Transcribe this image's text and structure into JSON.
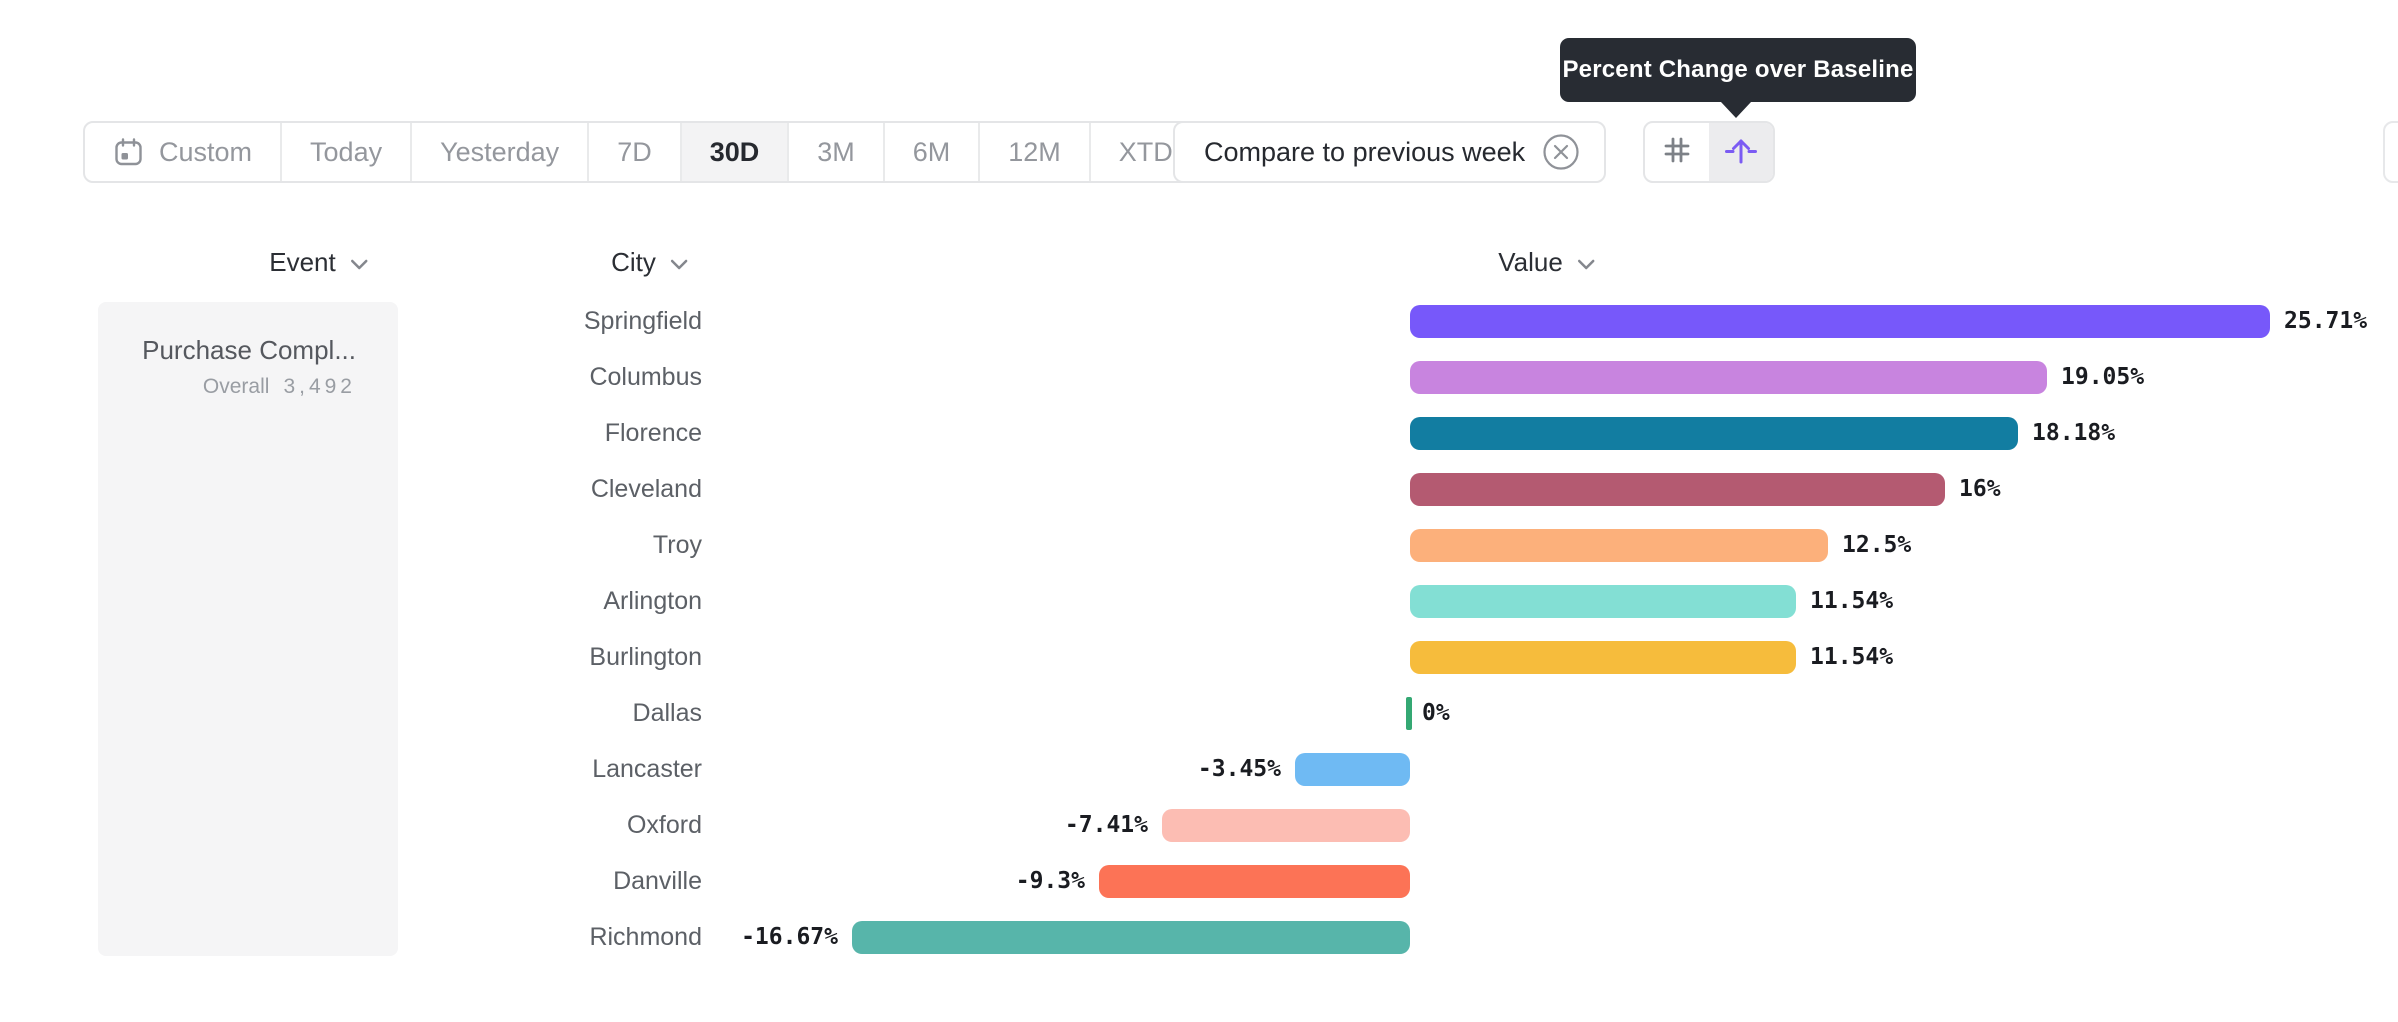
{
  "tooltip": {
    "text": "Percent Change over Baseline"
  },
  "toolbar": {
    "date_ranges": [
      {
        "label": "Custom",
        "icon": "calendar-icon",
        "selected": false
      },
      {
        "label": "Today",
        "selected": false
      },
      {
        "label": "Yesterday",
        "selected": false
      },
      {
        "label": "7D",
        "selected": false
      },
      {
        "label": "30D",
        "selected": true
      },
      {
        "label": "3M",
        "selected": false
      },
      {
        "label": "6M",
        "selected": false
      },
      {
        "label": "12M",
        "selected": false
      },
      {
        "label": "XTD",
        "selected": false,
        "chevron": true
      }
    ],
    "compare_chip": {
      "label": "Compare to previous week",
      "close_icon": "circle-x-icon"
    },
    "view_toggle": [
      {
        "icon": "grid-hash-icon",
        "selected": false
      },
      {
        "icon": "percent-baseline-icon",
        "selected": true
      }
    ]
  },
  "columns": [
    {
      "label": "Event"
    },
    {
      "label": "City"
    },
    {
      "label": "Value"
    }
  ],
  "event_card": {
    "title": "Purchase Compl...",
    "overall_label": "Overall",
    "overall_value": "3,492"
  },
  "chart_data": {
    "type": "bar",
    "orientation": "horizontal",
    "title": "Percent Change over Baseline",
    "unit": "%",
    "baseline": 0,
    "xlim": [
      -16.67,
      25.71
    ],
    "grid": false,
    "legend": false,
    "categories": [
      "Springfield",
      "Columbus",
      "Florence",
      "Cleveland",
      "Troy",
      "Arlington",
      "Burlington",
      "Dallas",
      "Lancaster",
      "Oxford",
      "Danville",
      "Richmond"
    ],
    "values": [
      25.71,
      19.05,
      18.18,
      16,
      12.5,
      11.54,
      11.54,
      0,
      -3.45,
      -7.41,
      -9.3,
      -16.67
    ],
    "labels": [
      "25.71%",
      "19.05%",
      "18.18%",
      "16%",
      "12.5%",
      "11.54%",
      "11.54%",
      "0%",
      "-3.45%",
      "-7.41%",
      "-9.3%",
      "-16.67%"
    ],
    "colors": [
      "#7758fa",
      "#c884df",
      "#127da1",
      "#b45a71",
      "#fcb07b",
      "#83dfd4",
      "#f6bc3c",
      "#34a873",
      "#6fbaf3",
      "#fcbdb3",
      "#fc7356",
      "#57b5aa"
    ]
  },
  "colors": {
    "accent_purple": "#7b5bf3",
    "tooltip_bg": "#282c33",
    "selected_segment_bg": "#f3f3f4",
    "card_bg": "#f5f5f6",
    "border": "#e4e5e7",
    "muted_text": "#94979d",
    "dark_text": "#26292f"
  }
}
